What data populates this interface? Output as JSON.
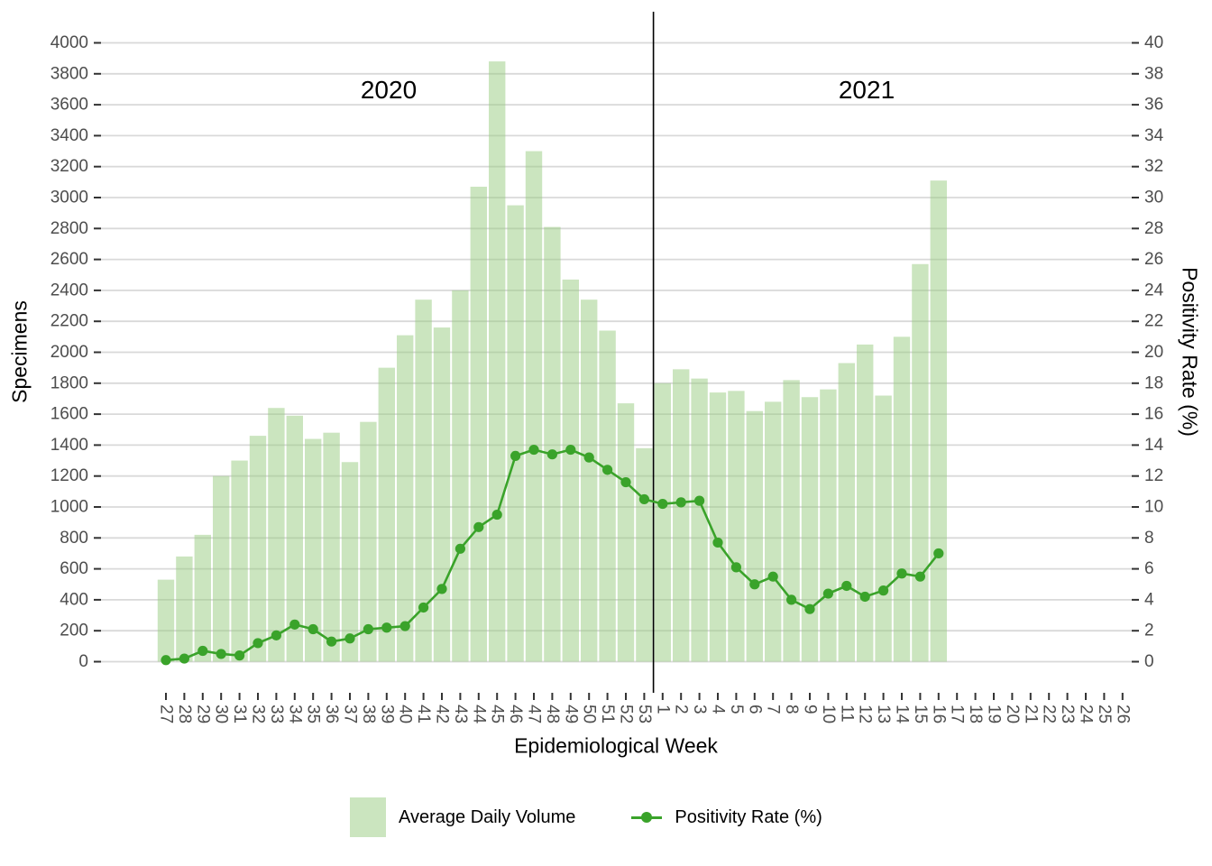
{
  "chart_data": {
    "type": "bar",
    "subtype": "dual-axis bar + line",
    "title": "",
    "xlabel": "Epidemiological Week",
    "ylabel_left": "Specimens",
    "ylabel_right": "Positivity Rate (%)",
    "left_axis": {
      "min": 0,
      "max": 4000,
      "step": 200
    },
    "right_axis": {
      "min": 0,
      "max": 40,
      "step": 2
    },
    "grid": "horizontal gridlines on, light gray",
    "legend_position": "bottom",
    "categories": [
      "27",
      "28",
      "29",
      "30",
      "31",
      "32",
      "33",
      "34",
      "35",
      "36",
      "37",
      "38",
      "39",
      "40",
      "41",
      "42",
      "43",
      "44",
      "45",
      "46",
      "47",
      "48",
      "49",
      "50",
      "51",
      "52",
      "53",
      "1",
      "2",
      "3",
      "4",
      "5",
      "6",
      "7",
      "8",
      "9",
      "10",
      "11",
      "12",
      "13",
      "14",
      "15",
      "16",
      "17",
      "18",
      "19",
      "20",
      "21",
      "22",
      "23",
      "24",
      "25",
      "26"
    ],
    "series": [
      {
        "name": "Average Daily Volume",
        "type": "bar",
        "axis": "left",
        "values": [
          530,
          680,
          820,
          1200,
          1300,
          1460,
          1640,
          1590,
          1440,
          1480,
          1290,
          1550,
          1900,
          2110,
          2340,
          2160,
          2400,
          3070,
          3880,
          2950,
          3300,
          2810,
          2470,
          2340,
          2140,
          1670,
          1380,
          1800,
          1890,
          1830,
          1740,
          1750,
          1620,
          1680,
          1820,
          1710,
          1760,
          1930,
          2050,
          1720,
          2100,
          2570,
          3110,
          null,
          null,
          null,
          null,
          null,
          null,
          null,
          null,
          null,
          null
        ]
      },
      {
        "name": "Positivity Rate (%)",
        "type": "line",
        "axis": "right",
        "values": [
          0.1,
          0.2,
          0.7,
          0.5,
          0.4,
          1.2,
          1.7,
          2.4,
          2.1,
          1.3,
          1.5,
          2.1,
          2.2,
          2.3,
          3.5,
          4.7,
          7.3,
          8.7,
          9.5,
          13.3,
          13.7,
          13.4,
          13.7,
          13.2,
          12.4,
          11.6,
          10.5,
          10.2,
          10.3,
          10.4,
          7.7,
          6.1,
          5.0,
          5.5,
          4.0,
          3.4,
          4.4,
          4.9,
          4.2,
          4.6,
          5.7,
          5.5,
          7.0,
          null,
          null,
          null,
          null,
          null,
          null,
          null,
          null,
          null,
          null
        ]
      }
    ],
    "annotations": {
      "year_left": "2020",
      "year_right": "2021",
      "separator": "vertical black line between week 53 (2020) and week 1 (2021)"
    },
    "colors": {
      "bar_fill_base": "#97CB7F",
      "bar_fill_opacity": 0.5,
      "line": "#3AA32A",
      "gridline": "#D9D9D9",
      "tick": "#333333",
      "tick_text": "#4D4D4D",
      "separator": "#000000",
      "background": "#FFFFFF"
    }
  }
}
